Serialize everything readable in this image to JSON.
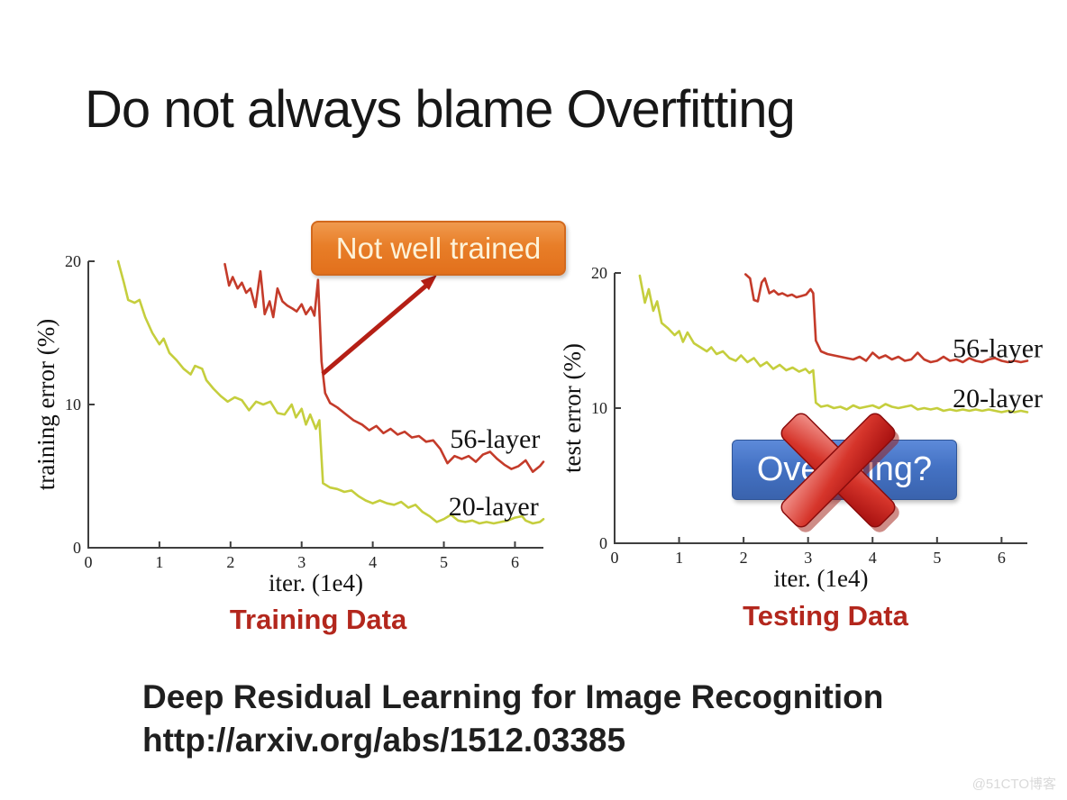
{
  "slide": {
    "title": "Do not always blame Overfitting",
    "reference_title": "Deep Residual Learning for Image Recognition",
    "reference_url": "http://arxiv.org/abs/1512.03385",
    "watermark": "@51CTO博客"
  },
  "callouts": {
    "not_well_trained": {
      "label": "Not well trained"
    },
    "overfitting": {
      "label": "Overfitting?"
    }
  },
  "colors": {
    "curve_20_layer": "#c5ce3d",
    "curve_56_layer": "#c43b2a",
    "caption_red": "#b3271d",
    "callout_orange": "#e8822e",
    "callout_blue": "#4472c4",
    "arrow_red": "#b51f15",
    "axis": "#3f3f3f"
  },
  "chart_data": [
    {
      "type": "line",
      "title": "Training Data",
      "xlabel": "iter. (1e4)",
      "ylabel": "training error (%)",
      "xlim": [
        0,
        6.4
      ],
      "ylim": [
        0,
        20
      ],
      "x_ticks": [
        0,
        1,
        2,
        3,
        4,
        5,
        6
      ],
      "y_ticks": [
        0,
        10,
        20
      ],
      "grid": false,
      "series": [
        {
          "name": "56-layer",
          "color": "#c43b2a",
          "label_at": [
            5.72,
            7.6
          ],
          "points": [
            [
              1.92,
              19.8
            ],
            [
              1.98,
              18.3
            ],
            [
              2.03,
              18.9
            ],
            [
              2.1,
              18.1
            ],
            [
              2.16,
              18.5
            ],
            [
              2.22,
              17.8
            ],
            [
              2.28,
              18.1
            ],
            [
              2.35,
              16.8
            ],
            [
              2.42,
              19.3
            ],
            [
              2.48,
              16.3
            ],
            [
              2.55,
              17.2
            ],
            [
              2.6,
              16.1
            ],
            [
              2.66,
              18.1
            ],
            [
              2.73,
              17.2
            ],
            [
              2.8,
              16.9
            ],
            [
              2.87,
              16.7
            ],
            [
              2.93,
              16.5
            ],
            [
              3.0,
              17.0
            ],
            [
              3.06,
              16.3
            ],
            [
              3.13,
              16.8
            ],
            [
              3.18,
              16.2
            ],
            [
              3.23,
              18.7
            ],
            [
              3.28,
              13.0
            ],
            [
              3.33,
              10.8
            ],
            [
              3.4,
              10.1
            ],
            [
              3.5,
              9.8
            ],
            [
              3.6,
              9.4
            ],
            [
              3.73,
              8.9
            ],
            [
              3.85,
              8.6
            ],
            [
              3.95,
              8.2
            ],
            [
              4.05,
              8.5
            ],
            [
              4.15,
              8.0
            ],
            [
              4.25,
              8.3
            ],
            [
              4.35,
              7.9
            ],
            [
              4.45,
              8.1
            ],
            [
              4.55,
              7.7
            ],
            [
              4.65,
              7.8
            ],
            [
              4.75,
              7.4
            ],
            [
              4.85,
              7.5
            ],
            [
              4.95,
              6.9
            ],
            [
              5.05,
              5.9
            ],
            [
              5.15,
              6.4
            ],
            [
              5.25,
              6.2
            ],
            [
              5.35,
              6.4
            ],
            [
              5.45,
              6.0
            ],
            [
              5.55,
              6.5
            ],
            [
              5.65,
              6.7
            ],
            [
              5.75,
              6.2
            ],
            [
              5.85,
              5.8
            ],
            [
              5.95,
              5.5
            ],
            [
              6.05,
              5.7
            ],
            [
              6.15,
              6.1
            ],
            [
              6.25,
              5.3
            ],
            [
              6.35,
              5.7
            ],
            [
              6.4,
              6.0
            ]
          ]
        },
        {
          "name": "20-layer",
          "color": "#c5ce3d",
          "label_at": [
            5.7,
            2.9
          ],
          "points": [
            [
              0.42,
              20
            ],
            [
              0.5,
              18.5
            ],
            [
              0.56,
              17.3
            ],
            [
              0.65,
              17.1
            ],
            [
              0.72,
              17.3
            ],
            [
              0.8,
              16.1
            ],
            [
              0.9,
              15.0
            ],
            [
              1.0,
              14.2
            ],
            [
              1.06,
              14.6
            ],
            [
              1.14,
              13.6
            ],
            [
              1.24,
              13.1
            ],
            [
              1.34,
              12.5
            ],
            [
              1.44,
              12.1
            ],
            [
              1.5,
              12.7
            ],
            [
              1.6,
              12.5
            ],
            [
              1.66,
              11.7
            ],
            [
              1.76,
              11.1
            ],
            [
              1.86,
              10.6
            ],
            [
              1.96,
              10.2
            ],
            [
              2.06,
              10.5
            ],
            [
              2.16,
              10.3
            ],
            [
              2.26,
              9.6
            ],
            [
              2.36,
              10.2
            ],
            [
              2.46,
              10.0
            ],
            [
              2.56,
              10.2
            ],
            [
              2.66,
              9.4
            ],
            [
              2.76,
              9.3
            ],
            [
              2.86,
              10.0
            ],
            [
              2.92,
              9.1
            ],
            [
              3.0,
              9.7
            ],
            [
              3.06,
              8.6
            ],
            [
              3.12,
              9.3
            ],
            [
              3.2,
              8.3
            ],
            [
              3.25,
              8.9
            ],
            [
              3.3,
              4.5
            ],
            [
              3.4,
              4.2
            ],
            [
              3.5,
              4.1
            ],
            [
              3.6,
              3.9
            ],
            [
              3.7,
              4.0
            ],
            [
              3.8,
              3.6
            ],
            [
              3.9,
              3.3
            ],
            [
              4.0,
              3.1
            ],
            [
              4.1,
              3.3
            ],
            [
              4.2,
              3.1
            ],
            [
              4.3,
              3.0
            ],
            [
              4.4,
              3.2
            ],
            [
              4.5,
              2.8
            ],
            [
              4.6,
              3.0
            ],
            [
              4.7,
              2.5
            ],
            [
              4.8,
              2.2
            ],
            [
              4.9,
              1.8
            ],
            [
              5.0,
              2.0
            ],
            [
              5.1,
              2.3
            ],
            [
              5.2,
              1.9
            ],
            [
              5.3,
              1.8
            ],
            [
              5.4,
              1.9
            ],
            [
              5.5,
              1.7
            ],
            [
              5.6,
              1.8
            ],
            [
              5.7,
              1.7
            ],
            [
              5.8,
              1.8
            ],
            [
              5.9,
              1.9
            ],
            [
              6.0,
              2.1
            ],
            [
              6.1,
              2.2
            ],
            [
              6.15,
              1.9
            ],
            [
              6.25,
              1.7
            ],
            [
              6.35,
              1.8
            ],
            [
              6.4,
              2.0
            ]
          ]
        }
      ]
    },
    {
      "type": "line",
      "title": "Testing Data",
      "xlabel": "iter. (1e4)",
      "ylabel": "test error (%)",
      "xlim": [
        0,
        6.4
      ],
      "ylim": [
        0,
        20
      ],
      "x_ticks": [
        0,
        1,
        2,
        3,
        4,
        5,
        6
      ],
      "y_ticks": [
        0,
        10,
        20
      ],
      "grid": false,
      "series": [
        {
          "name": "56-layer",
          "color": "#c43b2a",
          "label_at": [
            5.94,
            14.45
          ],
          "points": [
            [
              2.03,
              19.9
            ],
            [
              2.1,
              19.6
            ],
            [
              2.16,
              18.0
            ],
            [
              2.22,
              17.9
            ],
            [
              2.28,
              19.3
            ],
            [
              2.33,
              19.6
            ],
            [
              2.4,
              18.5
            ],
            [
              2.47,
              18.7
            ],
            [
              2.54,
              18.4
            ],
            [
              2.6,
              18.5
            ],
            [
              2.68,
              18.3
            ],
            [
              2.75,
              18.4
            ],
            [
              2.82,
              18.2
            ],
            [
              2.9,
              18.3
            ],
            [
              2.97,
              18.4
            ],
            [
              3.04,
              18.8
            ],
            [
              3.08,
              18.5
            ],
            [
              3.12,
              15.0
            ],
            [
              3.2,
              14.2
            ],
            [
              3.3,
              14.0
            ],
            [
              3.4,
              13.9
            ],
            [
              3.5,
              13.8
            ],
            [
              3.6,
              13.7
            ],
            [
              3.7,
              13.6
            ],
            [
              3.8,
              13.8
            ],
            [
              3.9,
              13.5
            ],
            [
              4.0,
              14.1
            ],
            [
              4.1,
              13.7
            ],
            [
              4.2,
              13.9
            ],
            [
              4.3,
              13.6
            ],
            [
              4.4,
              13.8
            ],
            [
              4.5,
              13.5
            ],
            [
              4.6,
              13.6
            ],
            [
              4.7,
              14.1
            ],
            [
              4.8,
              13.6
            ],
            [
              4.9,
              13.4
            ],
            [
              5.0,
              13.5
            ],
            [
              5.1,
              13.8
            ],
            [
              5.2,
              13.5
            ],
            [
              5.3,
              13.6
            ],
            [
              5.4,
              13.4
            ],
            [
              5.5,
              13.7
            ],
            [
              5.6,
              13.5
            ],
            [
              5.7,
              13.4
            ],
            [
              5.8,
              13.6
            ],
            [
              5.9,
              13.7
            ],
            [
              6.0,
              13.5
            ],
            [
              6.1,
              13.4
            ],
            [
              6.2,
              13.5
            ],
            [
              6.3,
              13.4
            ],
            [
              6.4,
              13.5
            ]
          ]
        },
        {
          "name": "20-layer",
          "color": "#c5ce3d",
          "label_at": [
            5.94,
            10.75
          ],
          "points": [
            [
              0.39,
              19.8
            ],
            [
              0.47,
              17.8
            ],
            [
              0.53,
              18.8
            ],
            [
              0.6,
              17.2
            ],
            [
              0.66,
              17.9
            ],
            [
              0.73,
              16.3
            ],
            [
              0.83,
              15.9
            ],
            [
              0.93,
              15.4
            ],
            [
              1.0,
              15.7
            ],
            [
              1.06,
              14.9
            ],
            [
              1.13,
              15.6
            ],
            [
              1.23,
              14.8
            ],
            [
              1.33,
              14.5
            ],
            [
              1.43,
              14.2
            ],
            [
              1.5,
              14.5
            ],
            [
              1.58,
              14.0
            ],
            [
              1.68,
              14.2
            ],
            [
              1.78,
              13.7
            ],
            [
              1.88,
              13.5
            ],
            [
              1.96,
              13.9
            ],
            [
              2.06,
              13.4
            ],
            [
              2.16,
              13.7
            ],
            [
              2.26,
              13.1
            ],
            [
              2.36,
              13.4
            ],
            [
              2.46,
              12.9
            ],
            [
              2.56,
              13.2
            ],
            [
              2.66,
              12.8
            ],
            [
              2.76,
              13.0
            ],
            [
              2.86,
              12.7
            ],
            [
              2.96,
              12.9
            ],
            [
              3.02,
              12.6
            ],
            [
              3.08,
              12.8
            ],
            [
              3.12,
              10.4
            ],
            [
              3.2,
              10.1
            ],
            [
              3.3,
              10.2
            ],
            [
              3.4,
              10.0
            ],
            [
              3.5,
              10.1
            ],
            [
              3.6,
              9.9
            ],
            [
              3.7,
              10.2
            ],
            [
              3.8,
              10.0
            ],
            [
              3.9,
              10.1
            ],
            [
              4.0,
              10.2
            ],
            [
              4.1,
              10.0
            ],
            [
              4.2,
              10.3
            ],
            [
              4.3,
              10.1
            ],
            [
              4.4,
              10.0
            ],
            [
              4.5,
              10.1
            ],
            [
              4.6,
              10.2
            ],
            [
              4.7,
              9.9
            ],
            [
              4.8,
              10.0
            ],
            [
              4.9,
              9.9
            ],
            [
              5.0,
              10.0
            ],
            [
              5.1,
              9.8
            ],
            [
              5.2,
              9.9
            ],
            [
              5.3,
              9.8
            ],
            [
              5.4,
              9.9
            ],
            [
              5.5,
              9.8
            ],
            [
              5.6,
              9.9
            ],
            [
              5.7,
              9.8
            ],
            [
              5.8,
              9.9
            ],
            [
              5.9,
              9.8
            ],
            [
              6.0,
              9.7
            ],
            [
              6.1,
              9.8
            ],
            [
              6.2,
              9.7
            ],
            [
              6.3,
              9.8
            ],
            [
              6.4,
              9.7
            ]
          ]
        }
      ]
    }
  ]
}
